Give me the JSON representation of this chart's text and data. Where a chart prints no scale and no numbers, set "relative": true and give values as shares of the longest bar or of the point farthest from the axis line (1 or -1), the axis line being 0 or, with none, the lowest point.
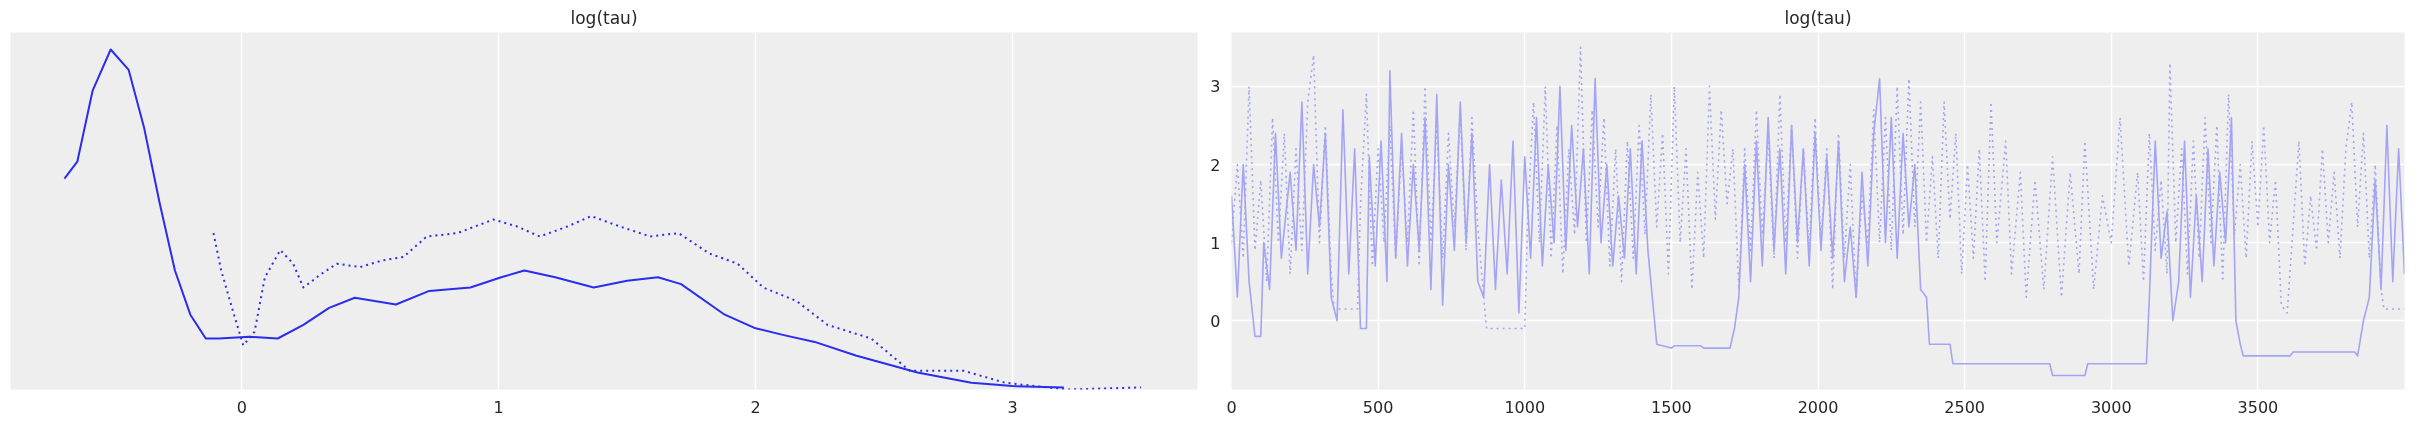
{
  "chart_data": [
    {
      "type": "line",
      "title": "log(tau)",
      "relative": true,
      "tick_labels": "x",
      "grid": "x",
      "xlim": [
        -0.9,
        3.72
      ],
      "xticks": [
        0,
        1,
        2,
        3
      ],
      "series": [
        {
          "color": "#2a2eec",
          "line_style": "solid",
          "x": [
            -0.69,
            -0.64,
            -0.58,
            -0.51,
            -0.44,
            -0.38,
            -0.32,
            -0.26,
            -0.2,
            -0.14,
            -0.09,
            0.03,
            0.14,
            0.24,
            0.34,
            0.44,
            0.6,
            0.73,
            0.89,
            1.01,
            1.1,
            1.22,
            1.37,
            1.5,
            1.62,
            1.71,
            1.88,
            2.0,
            2.11,
            2.23,
            2.39,
            2.63,
            2.84,
            3.0,
            3.2
          ],
          "values": [
            0.62,
            0.67,
            0.88,
            1.0,
            0.94,
            0.77,
            0.55,
            0.35,
            0.22,
            0.15,
            0.15,
            0.155,
            0.15,
            0.19,
            0.24,
            0.27,
            0.25,
            0.29,
            0.3,
            0.33,
            0.35,
            0.33,
            0.3,
            0.32,
            0.33,
            0.31,
            0.22,
            0.18,
            0.16,
            0.14,
            0.1,
            0.05,
            0.02,
            0.01,
            0.006
          ]
        },
        {
          "color": "#2a2eec",
          "line_style": "dotted",
          "x": [
            -0.11,
            -0.08,
            -0.03,
            0.006,
            0.05,
            0.09,
            0.15,
            0.2,
            0.24,
            0.31,
            0.37,
            0.46,
            0.55,
            0.63,
            0.72,
            0.84,
            0.98,
            1.07,
            1.16,
            1.27,
            1.36,
            1.47,
            1.59,
            1.7,
            1.82,
            1.93,
            2.03,
            2.16,
            2.28,
            2.45,
            2.6,
            2.81,
            2.97,
            3.21,
            3.5
          ],
          "values": [
            0.46,
            0.35,
            0.22,
            0.13,
            0.17,
            0.33,
            0.41,
            0.37,
            0.3,
            0.34,
            0.37,
            0.36,
            0.38,
            0.39,
            0.45,
            0.46,
            0.5,
            0.48,
            0.45,
            0.48,
            0.51,
            0.48,
            0.45,
            0.46,
            0.4,
            0.37,
            0.3,
            0.26,
            0.19,
            0.15,
            0.055,
            0.055,
            0.02,
            0.0,
            0.006
          ]
        }
      ]
    },
    {
      "type": "line",
      "title": "log(tau)",
      "grid": true,
      "xlim": [
        0,
        4000
      ],
      "xticks": [
        0,
        500,
        1000,
        1500,
        2000,
        2500,
        3000,
        3500
      ],
      "ylim": [
        -0.88,
        3.69
      ],
      "yticks": [
        0,
        1,
        2,
        3
      ],
      "series": [
        {
          "color": "#a3a4f5",
          "line_style": "solid",
          "x": [
            0,
            20,
            40,
            60,
            80,
            100,
            110,
            130,
            150,
            170,
            200,
            220,
            240,
            260,
            280,
            300,
            320,
            340,
            360,
            380,
            400,
            420,
            440,
            460,
            470,
            490,
            510,
            530,
            540,
            560,
            580,
            600,
            620,
            640,
            660,
            680,
            700,
            720,
            740,
            760,
            780,
            800,
            820,
            840,
            860,
            880,
            900,
            920,
            940,
            960,
            980,
            1000,
            1020,
            1040,
            1060,
            1080,
            1100,
            1120,
            1140,
            1160,
            1180,
            1200,
            1220,
            1240,
            1260,
            1280,
            1300,
            1320,
            1340,
            1360,
            1380,
            1400,
            1420,
            1440,
            1450,
            1500,
            1510,
            1600,
            1610,
            1700,
            1715,
            1730,
            1750,
            1770,
            1790,
            1810,
            1830,
            1850,
            1870,
            1890,
            1910,
            1930,
            1950,
            1970,
            1990,
            2010,
            2030,
            2050,
            2070,
            2090,
            2110,
            2130,
            2150,
            2170,
            2190,
            2210,
            2230,
            2250,
            2270,
            2290,
            2310,
            2330,
            2350,
            2370,
            2380,
            2450,
            2460,
            2790,
            2800,
            2910,
            2920,
            3120,
            3130,
            3150,
            3170,
            3190,
            3210,
            3230,
            3250,
            3270,
            3290,
            3310,
            3330,
            3350,
            3370,
            3390,
            3410,
            3425,
            3440,
            3450,
            3610,
            3620,
            3830,
            3840,
            3860,
            3880,
            3900,
            3920,
            3940,
            3960,
            3980,
            4000
          ],
          "values": [
            1.6,
            0.3,
            2.0,
            0.5,
            -0.2,
            -0.2,
            1.0,
            0.4,
            2.4,
            0.8,
            1.9,
            0.9,
            2.8,
            0.6,
            2.0,
            1.2,
            2.4,
            0.3,
            0.0,
            2.7,
            0.6,
            2.2,
            -0.1,
            -0.1,
            2.1,
            0.7,
            2.3,
            0.5,
            3.2,
            0.8,
            2.4,
            0.7,
            2.0,
            0.9,
            2.6,
            0.4,
            2.9,
            0.2,
            2.0,
            0.9,
            2.8,
            1.0,
            2.4,
            0.5,
            0.3,
            2.0,
            0.4,
            1.8,
            0.6,
            2.3,
            0.1,
            2.1,
            0.8,
            2.6,
            0.7,
            2.0,
            1.0,
            3.0,
            0.9,
            2.5,
            1.2,
            2.2,
            0.6,
            3.1,
            1.0,
            2.0,
            0.7,
            1.6,
            0.8,
            2.2,
            0.6,
            2.3,
            0.9,
            0.1,
            -0.3,
            -0.35,
            -0.32,
            -0.32,
            -0.35,
            -0.35,
            -0.1,
            0.3,
            2.0,
            0.5,
            2.3,
            0.7,
            2.6,
            0.9,
            2.2,
            0.6,
            2.5,
            1.0,
            2.2,
            0.7,
            2.4,
            0.9,
            2.1,
            0.8,
            2.3,
            0.5,
            1.2,
            0.3,
            1.9,
            0.7,
            2.4,
            3.1,
            1.0,
            2.6,
            0.8,
            2.4,
            1.2,
            2.0,
            0.4,
            0.3,
            -0.3,
            -0.3,
            -0.55,
            -0.55,
            -0.7,
            -0.7,
            -0.55,
            -0.55,
            0.3,
            2.3,
            0.8,
            1.4,
            0.0,
            0.5,
            2.3,
            0.3,
            1.6,
            0.5,
            2.2,
            0.7,
            1.9,
            1.0,
            2.6,
            0.0,
            -0.3,
            -0.45,
            -0.45,
            -0.4,
            -0.4,
            -0.45,
            0.0,
            0.3,
            1.8,
            0.4,
            2.5,
            0.5,
            2.2,
            0.6
          ]
        },
        {
          "color": "#a3a4f5",
          "line_style": "dotted",
          "x": [
            0,
            20,
            40,
            60,
            80,
            100,
            120,
            140,
            160,
            180,
            200,
            220,
            240,
            260,
            280,
            300,
            320,
            340,
            350,
            430,
            440,
            460,
            480,
            500,
            520,
            540,
            560,
            580,
            600,
            620,
            640,
            660,
            680,
            700,
            720,
            740,
            760,
            780,
            800,
            820,
            840,
            860,
            870,
            1000,
            1010,
            1030,
            1050,
            1070,
            1090,
            1110,
            1130,
            1150,
            1170,
            1190,
            1210,
            1230,
            1250,
            1270,
            1290,
            1310,
            1330,
            1350,
            1370,
            1390,
            1410,
            1430,
            1450,
            1470,
            1490,
            1510,
            1530,
            1550,
            1570,
            1590,
            1610,
            1630,
            1650,
            1670,
            1690,
            1710,
            1730,
            1750,
            1770,
            1790,
            1810,
            1830,
            1850,
            1870,
            1890,
            1910,
            1930,
            1950,
            1970,
            1990,
            2010,
            2030,
            2050,
            2070,
            2090,
            2110,
            2130,
            2150,
            2170,
            2190,
            2210,
            2230,
            2250,
            2270,
            2290,
            2310,
            2330,
            2350,
            2370,
            2390,
            2410,
            2430,
            2450,
            2470,
            2490,
            2510,
            2530,
            2550,
            2570,
            2590,
            2610,
            2640,
            2660,
            2690,
            2710,
            2740,
            2770,
            2800,
            2830,
            2860,
            2890,
            2910,
            2940,
            2970,
            3000,
            3030,
            3060,
            3090,
            3110,
            3130,
            3150,
            3170,
            3190,
            3200,
            3220,
            3240,
            3260,
            3280,
            3300,
            3320,
            3340,
            3360,
            3380,
            3400,
            3420,
            3440,
            3460,
            3480,
            3500,
            3520,
            3540,
            3560,
            3580,
            3600,
            3620,
            3640,
            3660,
            3680,
            3700,
            3720,
            3740,
            3760,
            3780,
            3800,
            3820,
            3840,
            3860,
            3880,
            3900,
            3920,
            3930,
            4000
          ],
          "values": [
            1.0,
            2.0,
            0.8,
            3.0,
            0.9,
            1.8,
            0.5,
            2.6,
            1.0,
            2.4,
            0.6,
            2.2,
            0.9,
            2.8,
            3.4,
            1.0,
            2.5,
            0.6,
            0.15,
            0.15,
            1.5,
            2.9,
            0.7,
            2.2,
            1.0,
            2.5,
            0.8,
            2.2,
            1.0,
            2.7,
            0.7,
            3.0,
            1.0,
            2.5,
            0.8,
            2.4,
            1.2,
            2.7,
            0.9,
            2.6,
            1.2,
            0.3,
            -0.1,
            -0.1,
            1.3,
            2.8,
            1.0,
            3.0,
            0.8,
            2.5,
            0.6,
            2.2,
            1.1,
            3.5,
            1.0,
            2.7,
            1.2,
            2.6,
            0.7,
            2.2,
            0.5,
            2.3,
            0.8,
            2.5,
            1.1,
            2.9,
            1.2,
            2.4,
            0.6,
            3.0,
            1.0,
            2.2,
            0.4,
            1.9,
            0.8,
            3.0,
            1.3,
            2.7,
            1.5,
            2.2,
            0.4,
            2.2,
            0.9,
            2.7,
            1.1,
            2.4,
            0.8,
            2.9,
            1.0,
            2.5,
            0.8,
            2.2,
            0.9,
            2.6,
            1.0,
            2.2,
            0.4,
            2.4,
            0.8,
            2.0,
            0.3,
            1.6,
            1.0,
            2.7,
            1.0,
            2.6,
            0.9,
            3.0,
            1.1,
            3.1,
            1.2,
            2.8,
            1.0,
            2.1,
            0.8,
            2.8,
            1.3,
            2.4,
            0.6,
            2.0,
            0.8,
            2.2,
            0.5,
            2.8,
            1.0,
            2.3,
            0.6,
            1.9,
            0.3,
            1.8,
            0.4,
            2.1,
            0.3,
            1.9,
            0.6,
            2.3,
            0.4,
            1.6,
            1.0,
            2.6,
            0.7,
            1.9,
            0.5,
            2.4,
            0.9,
            1.8,
            0.6,
            3.3,
            1.0,
            2.2,
            0.6,
            2.3,
            0.8,
            2.6,
            1.0,
            2.5,
            0.5,
            2.9,
            1.1,
            2.0,
            0.8,
            2.3,
            1.2,
            2.5,
            1.0,
            1.8,
            0.2,
            0.1,
            1.2,
            2.3,
            0.7,
            1.6,
            0.9,
            2.2,
            1.0,
            1.9,
            0.8,
            2.2,
            2.8,
            1.2,
            2.4,
            0.8,
            2.0,
            0.4,
            0.15,
            0.15
          ]
        }
      ]
    }
  ]
}
